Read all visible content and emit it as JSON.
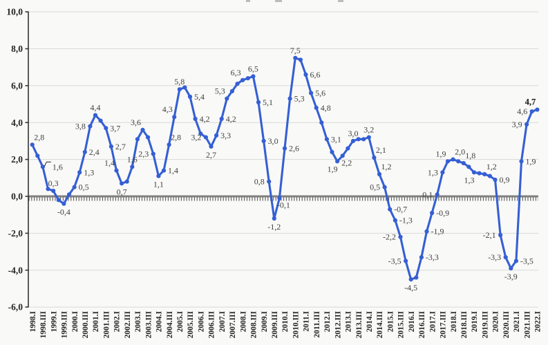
{
  "page": {
    "background": "#f9f9f7"
  },
  "chart_data": {
    "type": "line",
    "title": "",
    "xlabel": "",
    "ylabel": "",
    "legend": "none",
    "grid": "horizontal",
    "ylim": [
      -6,
      10
    ],
    "ystep": 2,
    "y_tick_labels": [
      "10,0",
      "8,0",
      "6,0",
      "4,0",
      "2,0",
      "0,0",
      "-2,0",
      "-4,0",
      "-6,0"
    ],
    "x_tick_labels": [
      "1998.I",
      "1998.III",
      "1999.I",
      "1999.III",
      "2000.I",
      "2000.III",
      "2001.I",
      "2001.III",
      "2002.I",
      "2002.III",
      "2003.I",
      "2003.III",
      "2004.I",
      "2004.III",
      "2005.I",
      "2005.III",
      "2006.I",
      "2006.III",
      "2007.I",
      "2007.III",
      "2008.I",
      "2008.III",
      "2009.I",
      "2009.III",
      "2010.I",
      "2010.III",
      "2011.I",
      "2011.III",
      "2012.I",
      "2012.III",
      "2013.I",
      "2013.III",
      "2014.I",
      "2014.III",
      "2015.I",
      "2015.III",
      "2016.I",
      "2016.III",
      "2017.I",
      "2017.III",
      "2018.I",
      "2018.III",
      "2019.I",
      "2019.III",
      "2020.I",
      "2020.III",
      "2021.I",
      "2021.III",
      "2022.I"
    ],
    "x_start_quarter": "1998.I",
    "x_end_quarter": "2022.I",
    "quarters_per_tick": 2,
    "values": [
      2.8,
      2.2,
      1.6,
      0.4,
      0.3,
      -0.2,
      -0.4,
      0.1,
      0.5,
      1.3,
      2.4,
      3.8,
      4.4,
      4.1,
      3.7,
      2.7,
      1.4,
      0.7,
      0.8,
      1.6,
      3.1,
      3.6,
      3.2,
      2.3,
      1.1,
      1.4,
      2.8,
      4.3,
      5.8,
      5.9,
      5.4,
      4.2,
      3.4,
      3.2,
      2.7,
      3.3,
      4.2,
      5.3,
      5.7,
      6.1,
      6.3,
      6.4,
      6.5,
      5.1,
      3.0,
      0.8,
      -1.2,
      -0.1,
      2.6,
      5.3,
      7.5,
      7.4,
      6.6,
      5.6,
      4.8,
      4.0,
      3.1,
      2.4,
      1.9,
      2.2,
      2.6,
      3.0,
      3.1,
      3.1,
      3.2,
      2.1,
      1.2,
      0.5,
      -0.7,
      -1.3,
      -2.2,
      -3.5,
      -4.5,
      -4.4,
      -3.3,
      -1.9,
      -0.9,
      0.1,
      1.3,
      1.9,
      2.0,
      1.9,
      1.8,
      1.6,
      1.3,
      1.25,
      1.2,
      1.1,
      0.9,
      -2.1,
      -3.3,
      -3.9,
      -3.5,
      1.9,
      3.9,
      4.6,
      4.7
    ],
    "point_labels": [
      {
        "i": 0,
        "t": "2,8",
        "p": "ar"
      },
      {
        "i": 2,
        "t": "1,6",
        "p": "r",
        "leader": true
      },
      {
        "i": 4,
        "t": "0,3",
        "p": "a"
      },
      {
        "i": 6,
        "t": "-0,4",
        "p": "b"
      },
      {
        "i": 8,
        "t": "0,5",
        "p": "r"
      },
      {
        "i": 9,
        "t": "1,3",
        "p": "r"
      },
      {
        "i": 10,
        "t": "2,4",
        "p": "r"
      },
      {
        "i": 11,
        "t": "3,8",
        "p": "l"
      },
      {
        "i": 12,
        "t": "4,4",
        "p": "a"
      },
      {
        "i": 14,
        "t": "3,7",
        "p": "r"
      },
      {
        "i": 15,
        "t": "2,7",
        "p": "r"
      },
      {
        "i": 16,
        "t": "1,4",
        "p": "al"
      },
      {
        "i": 17,
        "t": "0,7",
        "p": "b"
      },
      {
        "i": 19,
        "t": "1,6",
        "p": "a"
      },
      {
        "i": 21,
        "t": "3,6",
        "p": "al"
      },
      {
        "i": 23,
        "t": "2,3",
        "p": "l"
      },
      {
        "i": 24,
        "t": "1,1",
        "p": "b"
      },
      {
        "i": 25,
        "t": "1,4",
        "p": "r"
      },
      {
        "i": 26,
        "t": "2,8",
        "p": "ar"
      },
      {
        "i": 27,
        "t": "4,3",
        "p": "al"
      },
      {
        "i": 28,
        "t": "5,8",
        "p": "a"
      },
      {
        "i": 30,
        "t": "5,4",
        "p": "r"
      },
      {
        "i": 31,
        "t": "4,2",
        "p": "r"
      },
      {
        "i": 33,
        "t": "3,2",
        "p": "l"
      },
      {
        "i": 34,
        "t": "2,7",
        "p": "b"
      },
      {
        "i": 35,
        "t": "3,3",
        "p": "r"
      },
      {
        "i": 36,
        "t": "4,2",
        "p": "r"
      },
      {
        "i": 37,
        "t": "5,3",
        "p": "al"
      },
      {
        "i": 40,
        "t": "6,3",
        "p": "al"
      },
      {
        "i": 42,
        "t": "6,5",
        "p": "a"
      },
      {
        "i": 43,
        "t": "5,1",
        "p": "r"
      },
      {
        "i": 44,
        "t": "3,0",
        "p": "r"
      },
      {
        "i": 45,
        "t": "0,8",
        "p": "l"
      },
      {
        "i": 46,
        "t": "-1,2",
        "p": "b"
      },
      {
        "i": 47,
        "t": "-0,1",
        "p": "br"
      },
      {
        "i": 48,
        "t": "2,6",
        "p": "r"
      },
      {
        "i": 49,
        "t": "5,3",
        "p": "r"
      },
      {
        "i": 50,
        "t": "7,5",
        "p": "a"
      },
      {
        "i": 52,
        "t": "6,6",
        "p": "r"
      },
      {
        "i": 53,
        "t": "5,6",
        "p": "r"
      },
      {
        "i": 54,
        "t": "4,8",
        "p": "r"
      },
      {
        "i": 56,
        "t": "3,1",
        "p": "r"
      },
      {
        "i": 58,
        "t": "1,9",
        "p": "bl"
      },
      {
        "i": 59,
        "t": "2,2",
        "p": "br"
      },
      {
        "i": 61,
        "t": "3,0",
        "p": "a"
      },
      {
        "i": 64,
        "t": "3,2",
        "p": "a"
      },
      {
        "i": 65,
        "t": "2,1",
        "p": "ar"
      },
      {
        "i": 66,
        "t": "1,2",
        "p": "ar"
      },
      {
        "i": 67,
        "t": "0,5",
        "p": "l"
      },
      {
        "i": 68,
        "t": "-0,7",
        "p": "r"
      },
      {
        "i": 69,
        "t": "-1,3",
        "p": "r"
      },
      {
        "i": 70,
        "t": "-2,2",
        "p": "l"
      },
      {
        "i": 71,
        "t": "-3,5",
        "p": "l"
      },
      {
        "i": 72,
        "t": "-4,5",
        "p": "b"
      },
      {
        "i": 74,
        "t": "-3,3",
        "p": "r"
      },
      {
        "i": 75,
        "t": "-1,9",
        "p": "r"
      },
      {
        "i": 76,
        "t": "-0,9",
        "p": "r"
      },
      {
        "i": 77,
        "t": "0,1",
        "p": "l"
      },
      {
        "i": 78,
        "t": "1,3",
        "p": "l"
      },
      {
        "i": 79,
        "t": "1,9",
        "p": "al"
      },
      {
        "i": 80,
        "t": "2,0",
        "p": "ar"
      },
      {
        "i": 82,
        "t": "1,8",
        "p": "ar"
      },
      {
        "i": 84,
        "t": "1,3",
        "p": "bl"
      },
      {
        "i": 86,
        "t": "1,2",
        "p": "ar"
      },
      {
        "i": 88,
        "t": "0,9",
        "p": "r"
      },
      {
        "i": 89,
        "t": "-2,1",
        "p": "l"
      },
      {
        "i": 90,
        "t": "-3,3",
        "p": "l"
      },
      {
        "i": 91,
        "t": "-3,9",
        "p": "b"
      },
      {
        "i": 92,
        "t": "-3,5",
        "p": "r"
      },
      {
        "i": 93,
        "t": "1,9",
        "p": "r"
      },
      {
        "i": 94,
        "t": "3,9",
        "p": "l"
      },
      {
        "i": 95,
        "t": "4,6",
        "p": "l"
      },
      {
        "i": 96,
        "t": "4,7",
        "p": "al",
        "bold": true
      }
    ],
    "colors": {
      "line": "#355fd4",
      "marker": "#355fd4",
      "value_label": "#3f3f3f",
      "bold_label": "#111111",
      "axis_text": "#262626",
      "grid": "#d9d9d9",
      "zero_line": "#7f7f7f",
      "tick_comb": "#4a4a4a",
      "axis_line": "#333333",
      "background": "#f9f9f7"
    },
    "top_clipped_artifact": true
  }
}
